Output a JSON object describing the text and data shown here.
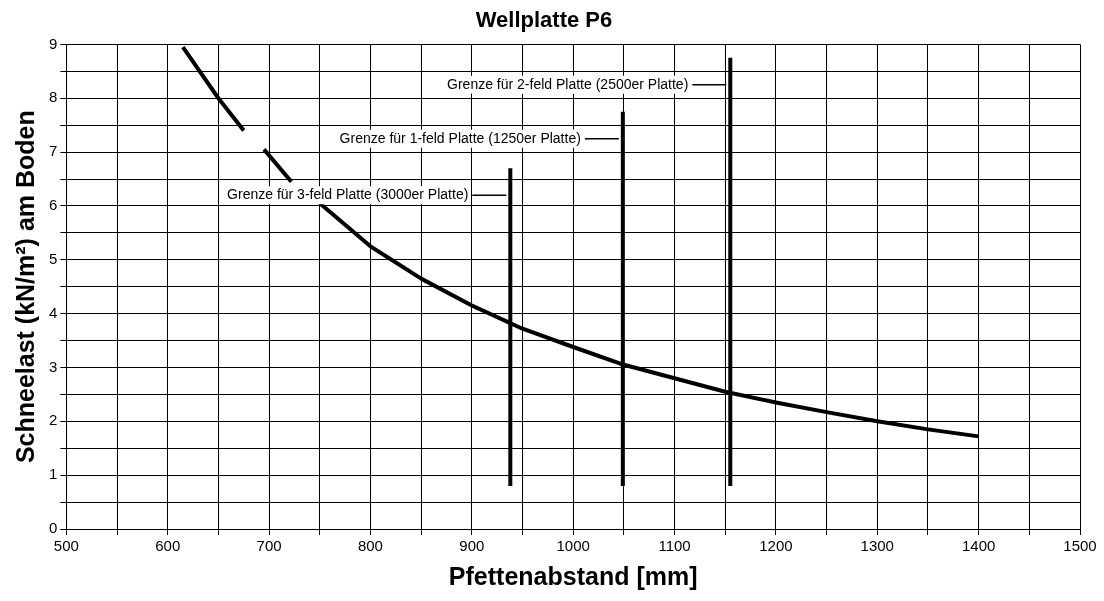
{
  "chart_data": {
    "type": "line",
    "title": "Wellplatte P6",
    "xlabel": "Pfettenabstand [mm]",
    "ylabel": "Schneelast (kN/m²) am Boden",
    "xlim": [
      500,
      1500
    ],
    "ylim": [
      0,
      9
    ],
    "xticks": [
      500,
      {
        "value": 550,
        "label": null
      },
      600,
      {
        "value": 650,
        "label": null
      },
      700,
      {
        "value": 750,
        "label": null
      },
      800,
      {
        "value": 850,
        "label": null
      },
      900,
      {
        "value": 950,
        "label": null
      },
      1000,
      {
        "value": 1050,
        "label": null
      },
      1100,
      {
        "value": 1150,
        "label": null
      },
      1200,
      {
        "value": 1250,
        "label": null
      },
      1300,
      {
        "value": 1350,
        "label": null
      },
      1400,
      {
        "value": 1450,
        "label": null
      },
      1500
    ],
    "yticks": [
      0,
      {
        "value": 0.5,
        "label": null
      },
      1,
      {
        "value": 1.5,
        "label": null
      },
      2,
      {
        "value": 2.5,
        "label": null
      },
      3,
      {
        "value": 3.5,
        "label": null
      },
      4,
      {
        "value": 4.5,
        "label": null
      },
      5,
      {
        "value": 5.5,
        "label": null
      },
      6,
      {
        "value": 6.5,
        "label": null
      },
      7,
      {
        "value": 7.5,
        "label": null
      },
      8,
      {
        "value": 8.5,
        "label": null
      },
      9
    ],
    "grid": true,
    "legend": false,
    "marker": "none",
    "line_style": "solid",
    "series": [
      {
        "color": "#000000",
        "x": [
          615,
          650,
          675,
          685,
          695,
          722,
          736,
          750,
          800,
          850,
          900,
          950,
          1000,
          1050,
          1100,
          1150,
          1200,
          1250,
          1300,
          1350,
          1400
        ],
        "values": [
          8.95,
          8.0,
          7.4,
          null,
          7.05,
          6.45,
          null,
          6.05,
          5.25,
          4.65,
          4.15,
          3.72,
          3.38,
          3.05,
          2.8,
          2.55,
          2.35,
          2.17,
          2.0,
          1.85,
          1.72
        ]
      },
      {
        "color": "#000000",
        "x": [
          938,
          938
        ],
        "values": [
          0.8,
          6.7
        ]
      },
      {
        "color": "#000000",
        "x": [
          1049,
          1049
        ],
        "values": [
          0.8,
          7.75
        ]
      },
      {
        "color": "#000000",
        "x": [
          1155,
          1155
        ],
        "values": [
          0.8,
          8.75
        ]
      }
    ],
    "annotations": [
      "Grenze für 3-feld Platte (3000er Platte)",
      "Grenze für 1-feld Platte (1250er Platte)",
      "Grenze für 2-feld Platte (2500er Platte)"
    ]
  }
}
